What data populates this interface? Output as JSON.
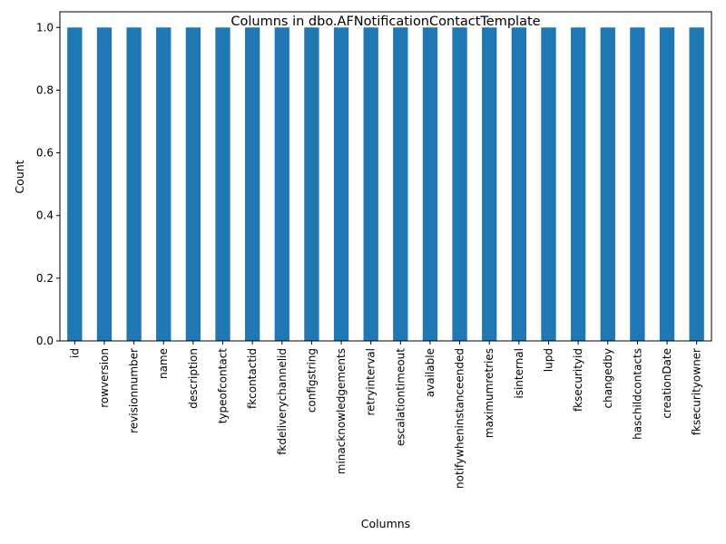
{
  "chart_data": {
    "type": "bar",
    "title": "Columns in dbo.AFNotificationContactTemplate",
    "xlabel": "Columns",
    "ylabel": "Count",
    "categories": [
      "id",
      "rowversion",
      "revisionnumber",
      "name",
      "description",
      "typeofcontact",
      "fkcontactid",
      "fkdeliverychannelid",
      "configstring",
      "minacknowledgements",
      "retryinterval",
      "escalationtimeout",
      "available",
      "notifywheninstanceended",
      "maximumretries",
      "isinternal",
      "lupd",
      "fksecurityid",
      "changedby",
      "haschildcontacts",
      "creationDate",
      "fksecurityowner"
    ],
    "values": [
      1,
      1,
      1,
      1,
      1,
      1,
      1,
      1,
      1,
      1,
      1,
      1,
      1,
      1,
      1,
      1,
      1,
      1,
      1,
      1,
      1,
      1
    ],
    "ylim": [
      0,
      1.05
    ],
    "yticks": [
      "0.0",
      "0.2",
      "0.4",
      "0.6",
      "0.8",
      "1.0"
    ],
    "bar_color": "#1f77b4",
    "grid": false,
    "legend": "none"
  }
}
